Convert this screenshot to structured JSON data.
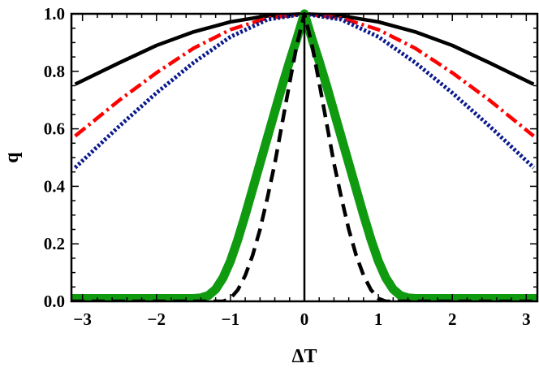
{
  "chart_data": {
    "type": "line",
    "title": "",
    "xlabel": "ΔT",
    "ylabel": "q",
    "xlim": [
      -3.15,
      3.15
    ],
    "ylim": [
      0,
      1.0
    ],
    "x_ticks": [
      -3,
      -2,
      -1,
      0,
      1,
      2,
      3
    ],
    "x_tick_labels": [
      "−3",
      "−2",
      "−1",
      "0",
      "1",
      "2",
      "3"
    ],
    "y_ticks": [
      0.0,
      0.2,
      0.4,
      0.6,
      0.8,
      1.0
    ],
    "y_tick_labels": [
      "0.0",
      "0.2",
      "0.4",
      "0.6",
      "0.8",
      "1.0"
    ],
    "grid": false,
    "legend": "none",
    "vertical_line_at_x": 0,
    "series": [
      {
        "style": "solid",
        "color": "#000000",
        "x": [
          -3.1,
          -2.5,
          -2,
          -1.5,
          -1,
          -0.5,
          0,
          0.5,
          1,
          1.5,
          2,
          2.5,
          3.1
        ],
        "values": [
          0.755,
          0.83,
          0.89,
          0.937,
          0.972,
          0.993,
          1.0,
          0.993,
          0.972,
          0.937,
          0.89,
          0.83,
          0.755
        ]
      },
      {
        "style": "dash-dot",
        "color": "#ff0000",
        "x": [
          -3.1,
          -2.5,
          -2,
          -1.5,
          -1,
          -0.5,
          0,
          0.5,
          1,
          1.5,
          2,
          2.5,
          3.1
        ],
        "values": [
          0.575,
          0.7,
          0.795,
          0.88,
          0.945,
          0.985,
          1.0,
          0.985,
          0.945,
          0.88,
          0.795,
          0.7,
          0.575
        ]
      },
      {
        "style": "dotted",
        "color": "#0a1a8c",
        "x": [
          -3.1,
          -2.5,
          -2,
          -1.5,
          -1,
          -0.5,
          0,
          0.5,
          1,
          1.5,
          2,
          2.5,
          3.1
        ],
        "values": [
          0.465,
          0.61,
          0.725,
          0.83,
          0.92,
          0.98,
          1.0,
          0.98,
          0.92,
          0.83,
          0.725,
          0.61,
          0.465
        ]
      },
      {
        "style": "thick-solid",
        "color": "#109a10",
        "x": [
          -3.15,
          -1.5,
          -1.4,
          -1.3,
          -1.2,
          -1.1,
          -1.0,
          -0.9,
          -0.8,
          -0.7,
          -0.6,
          -0.5,
          -0.4,
          -0.3,
          -0.2,
          -0.1,
          0,
          0.1,
          0.2,
          0.3,
          0.4,
          0.5,
          0.6,
          0.7,
          0.8,
          0.9,
          1.0,
          1.1,
          1.2,
          1.3,
          1.4,
          1.5,
          3.15
        ],
        "values": [
          0.01,
          0.01,
          0.012,
          0.02,
          0.042,
          0.082,
          0.14,
          0.215,
          0.3,
          0.39,
          0.48,
          0.57,
          0.66,
          0.75,
          0.835,
          0.915,
          1.0,
          0.915,
          0.835,
          0.75,
          0.66,
          0.57,
          0.48,
          0.39,
          0.3,
          0.215,
          0.14,
          0.082,
          0.042,
          0.02,
          0.012,
          0.01,
          0.01
        ]
      },
      {
        "style": "dashed",
        "color": "#000000",
        "x": [
          -3.15,
          -1.1,
          -1.0,
          -0.9,
          -0.8,
          -0.7,
          -0.6,
          -0.5,
          -0.4,
          -0.3,
          -0.2,
          -0.1,
          0,
          0.1,
          0.2,
          0.3,
          0.4,
          0.5,
          0.6,
          0.7,
          0.8,
          0.9,
          1.0,
          1.1,
          3.15
        ],
        "values": [
          0.0,
          0.0,
          0.01,
          0.04,
          0.09,
          0.16,
          0.25,
          0.36,
          0.48,
          0.62,
          0.76,
          0.895,
          1.0,
          0.895,
          0.76,
          0.62,
          0.48,
          0.36,
          0.25,
          0.16,
          0.09,
          0.04,
          0.01,
          0.0,
          0.0
        ]
      }
    ]
  }
}
